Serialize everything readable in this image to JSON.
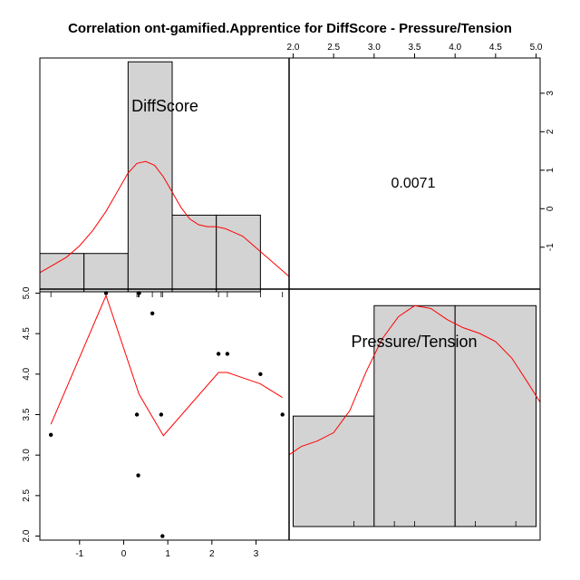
{
  "chart_data": {
    "type": "scatter-matrix",
    "title": "Correlation ont-gamified.Apprentice for DiffScore - Pressure/Tension",
    "variables": [
      "DiffScore",
      "Pressure/Tension"
    ],
    "correlation": "0.0071",
    "diffscore_axis": {
      "range": [
        -1.9,
        3.75
      ],
      "ticks": [
        -1,
        0,
        1,
        2,
        3
      ]
    },
    "pressure_axis": {
      "range": [
        1.95,
        5.05
      ],
      "ticks": [
        2.0,
        2.5,
        3.0,
        3.5,
        4.0,
        4.5,
        5.0
      ]
    },
    "diffscore_hist": {
      "breaks": [
        -1.9,
        -0.9,
        0.1,
        1.1,
        2.1,
        3.1
      ],
      "heights": [
        0.1,
        0.1,
        0.6,
        0.2,
        0.2
      ],
      "rug": [
        -1.65,
        -0.4,
        0.3,
        0.33,
        0.35,
        0.65,
        0.85,
        0.88,
        2.15,
        2.35,
        3.1,
        3.6
      ],
      "density": [
        [
          -1.9,
          0.05
        ],
        [
          -1.6,
          0.07
        ],
        [
          -1.3,
          0.09
        ],
        [
          -1.0,
          0.12
        ],
        [
          -0.7,
          0.16
        ],
        [
          -0.4,
          0.21
        ],
        [
          -0.1,
          0.27
        ],
        [
          0.1,
          0.31
        ],
        [
          0.3,
          0.335
        ],
        [
          0.5,
          0.34
        ],
        [
          0.7,
          0.33
        ],
        [
          0.9,
          0.3
        ],
        [
          1.1,
          0.26
        ],
        [
          1.3,
          0.22
        ],
        [
          1.5,
          0.19
        ],
        [
          1.7,
          0.175
        ],
        [
          1.9,
          0.17
        ],
        [
          2.1,
          0.17
        ],
        [
          2.3,
          0.165
        ],
        [
          2.5,
          0.155
        ],
        [
          2.7,
          0.145
        ],
        [
          2.9,
          0.125
        ],
        [
          3.1,
          0.105
        ],
        [
          3.3,
          0.085
        ],
        [
          3.5,
          0.065
        ],
        [
          3.75,
          0.04
        ]
      ]
    },
    "scatter_points": [
      [
        -1.65,
        3.25
      ],
      [
        -0.4,
        5.0
      ],
      [
        0.35,
        5.0
      ],
      [
        0.65,
        4.75
      ],
      [
        2.15,
        4.25
      ],
      [
        2.35,
        4.25
      ],
      [
        3.1,
        4.0
      ],
      [
        0.3,
        3.5
      ],
      [
        0.85,
        3.5
      ],
      [
        3.6,
        3.5
      ],
      [
        0.33,
        2.75
      ],
      [
        0.88,
        2.0
      ]
    ],
    "scatter_smooth": [
      [
        -1.65,
        3.38
      ],
      [
        -0.4,
        4.97
      ],
      [
        0.35,
        3.75
      ],
      [
        0.9,
        3.24
      ],
      [
        2.15,
        4.02
      ],
      [
        2.35,
        4.02
      ],
      [
        3.1,
        3.88
      ],
      [
        3.6,
        3.71
      ]
    ],
    "pressure_hist": {
      "breaks": [
        2.0,
        3.0,
        4.0,
        5.0
      ],
      "heights": [
        0.2,
        0.4,
        0.4
      ],
      "rug": [
        2.0,
        2.75,
        3.25,
        3.5,
        4.0,
        4.25,
        4.75,
        5.0
      ],
      "density": [
        [
          1.95,
          0.13
        ],
        [
          2.1,
          0.145
        ],
        [
          2.3,
          0.155
        ],
        [
          2.5,
          0.17
        ],
        [
          2.7,
          0.21
        ],
        [
          2.9,
          0.28
        ],
        [
          3.1,
          0.34
        ],
        [
          3.3,
          0.38
        ],
        [
          3.5,
          0.4
        ],
        [
          3.7,
          0.395
        ],
        [
          3.9,
          0.375
        ],
        [
          4.1,
          0.36
        ],
        [
          4.3,
          0.35
        ],
        [
          4.5,
          0.335
        ],
        [
          4.7,
          0.305
        ],
        [
          4.9,
          0.26
        ],
        [
          5.05,
          0.225
        ]
      ]
    }
  }
}
